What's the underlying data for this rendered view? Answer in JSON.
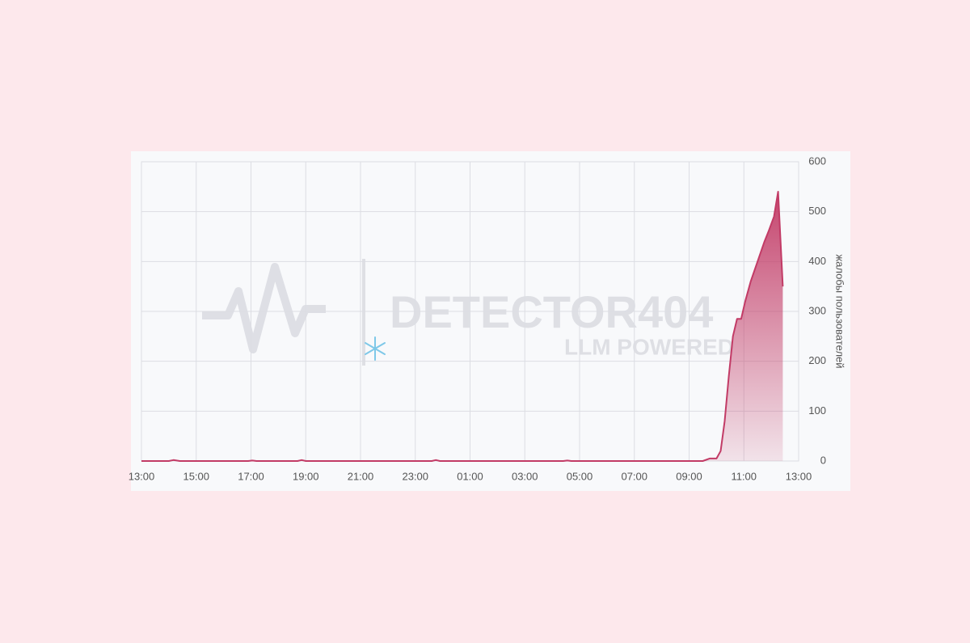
{
  "chart_data": {
    "type": "area",
    "y_label": "жалобы пользователей",
    "watermark": {
      "title": "DETECTOR404",
      "subtitle": "LLM POWERED"
    },
    "color": "#c23b66",
    "grid": true,
    "xlim": [
      0,
      24
    ],
    "xticks": [
      {
        "value": 0,
        "label": "13:00"
      },
      {
        "value": 2,
        "label": "15:00"
      },
      {
        "value": 4,
        "label": "17:00"
      },
      {
        "value": 6,
        "label": "19:00"
      },
      {
        "value": 8,
        "label": "21:00"
      },
      {
        "value": 10,
        "label": "23:00"
      },
      {
        "value": 12,
        "label": "01:00"
      },
      {
        "value": 14,
        "label": "03:00"
      },
      {
        "value": 16,
        "label": "05:00"
      },
      {
        "value": 18,
        "label": "07:00"
      },
      {
        "value": 20,
        "label": "09:00"
      },
      {
        "value": 22,
        "label": "11:00"
      },
      {
        "value": 24,
        "label": "13:00"
      }
    ],
    "ylim": [
      0,
      600
    ],
    "yticks": [
      0,
      100,
      200,
      300,
      400,
      500,
      600
    ],
    "x": [
      0,
      1,
      1.17,
      1.4,
      3.9,
      4.05,
      4.2,
      5.7,
      5.85,
      6,
      10.6,
      10.75,
      10.9,
      15.4,
      15.55,
      15.7,
      20.5,
      20.75,
      21,
      21.15,
      21.3,
      21.45,
      21.6,
      21.75,
      21.9,
      22.05,
      22.25,
      22.5,
      22.75,
      22.9,
      23.1,
      23.25,
      23.42
    ],
    "values": [
      0,
      0,
      2,
      0,
      0,
      1,
      0,
      0,
      2,
      0,
      0,
      2,
      0,
      0,
      1,
      0,
      0,
      5,
      5,
      20,
      80,
      170,
      250,
      285,
      285,
      320,
      360,
      400,
      440,
      460,
      490,
      540,
      350
    ]
  }
}
